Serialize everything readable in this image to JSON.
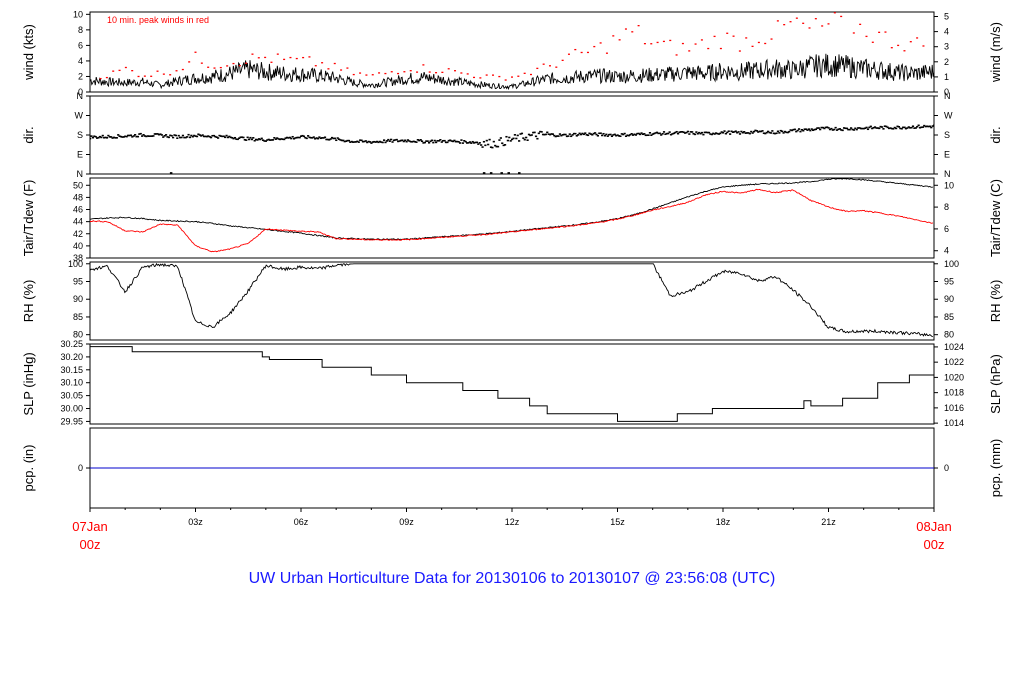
{
  "chart_data": {
    "type": "line",
    "title": "UW Urban Horticulture Data for 20130106  to  20130107 @ 23:56:08  (UTC)",
    "x_ticks": [
      "03z",
      "06z",
      "09z",
      "12z",
      "15z",
      "18z",
      "21z"
    ],
    "x_start": [
      "07Jan",
      "00z"
    ],
    "x_end": [
      "08Jan",
      "00z"
    ],
    "x_range_hours": [
      0,
      24
    ],
    "panels": [
      {
        "id": "wind",
        "left_label": "wind (kts)",
        "right_label": "wind (m/s)",
        "annotation": "10 min. peak winds in red",
        "left_ticks": [
          0,
          2,
          4,
          6,
          8,
          10
        ],
        "right_ticks": [
          0,
          1,
          2,
          3,
          4,
          5
        ],
        "ylim": [
          0,
          10.3
        ],
        "series": [
          {
            "role": "mean",
            "color": "#000000",
            "x": [
              0,
              0.5,
              1,
              1.5,
              2,
              2.5,
              3,
              3.5,
              4,
              4.5,
              5,
              5.5,
              6,
              6.5,
              7,
              7.5,
              8,
              8.5,
              9,
              9.5,
              10,
              10.5,
              11,
              11.5,
              12,
              12.5,
              13,
              13.5,
              14,
              14.5,
              15,
              15.5,
              16,
              16.5,
              17,
              17.5,
              18,
              18.5,
              19,
              19.5,
              20,
              20.5,
              21,
              21.5,
              22,
              22.5,
              23,
              23.5,
              24
            ],
            "y": [
              1.5,
              1.3,
              1.2,
              1.3,
              0.9,
              1.4,
              1.8,
              2.0,
              2.4,
              2.9,
              2.6,
              2.4,
              2.3,
              2.1,
              1.8,
              1.2,
              0.9,
              1.3,
              1.7,
              1.9,
              1.6,
              1.3,
              1.0,
              0.8,
              0.7,
              1.2,
              1.7,
              1.8,
              2.0,
              2.1,
              2.0,
              2.1,
              2.2,
              2.3,
              2.5,
              2.4,
              2.7,
              2.6,
              2.8,
              3.0,
              2.8,
              3.3,
              3.5,
              3.3,
              3.0,
              2.8,
              2.5,
              2.4,
              2.6
            ]
          },
          {
            "role": "peak",
            "color": "#ff0000",
            "x": [
              0.5,
              1,
              1.5,
              2,
              2.5,
              3,
              3.5,
              4,
              4.5,
              5,
              5.5,
              6,
              6.5,
              7,
              7.5,
              8,
              8.5,
              9,
              9.5,
              10,
              10.5,
              11,
              11.5,
              12,
              12.5,
              13,
              13.5,
              14,
              14.5,
              15,
              15.5,
              16,
              16.5,
              17,
              17.5,
              18,
              18.5,
              19,
              19.5,
              20,
              20.5,
              21,
              21.5,
              22,
              22.5,
              23,
              23.5
            ],
            "y": [
              2.3,
              3.2,
              2.4,
              2.6,
              3.2,
              4.7,
              3.8,
              4.2,
              4.6,
              4.8,
              4.4,
              4.3,
              4.0,
              3.3,
              2.6,
              2.2,
              2.7,
              3.4,
              3.3,
              3.1,
              2.7,
              2.3,
              2.0,
              2.1,
              2.7,
              3.5,
              4.6,
              5.3,
              6.1,
              7.4,
              8.4,
              6.7,
              6.2,
              6.0,
              6.8,
              7.5,
              6.9,
              7.7,
              8.2,
              9.6,
              8.6,
              9.3,
              9.8,
              8.7,
              7.6,
              7.0,
              6.6
            ]
          }
        ]
      },
      {
        "id": "dir",
        "left_label": "dir.",
        "right_label": "dir.",
        "left_ticks": [
          "N",
          "E",
          "S",
          "W",
          "N"
        ],
        "right_ticks": [
          "N",
          "E",
          "S",
          "W",
          "N"
        ],
        "ylim": [
          0,
          360
        ],
        "series": [
          {
            "role": "direction_deg",
            "color": "#000000",
            "x": [
              0,
              0.5,
              1,
              1.5,
              2,
              2.5,
              3,
              3.5,
              4,
              4.5,
              5,
              5.5,
              6,
              6.5,
              7,
              7.5,
              8,
              8.5,
              9,
              9.5,
              10,
              10.5,
              11,
              11.5,
              12,
              12.5,
              13,
              13.5,
              14,
              14.5,
              15,
              15.5,
              16,
              16.5,
              17,
              17.5,
              18,
              18.5,
              19,
              19.5,
              20,
              20.5,
              21,
              21.5,
              22,
              22.5,
              23,
              23.5,
              24
            ],
            "y": [
              170,
              172,
              175,
              180,
              178,
              172,
              178,
              174,
              170,
              162,
              158,
              165,
              170,
              168,
              160,
              150,
              148,
              152,
              155,
              150,
              152,
              150,
              146,
              140,
              160,
              175,
              182,
              178,
              185,
              182,
              180,
              182,
              186,
              188,
              190,
              186,
              192,
              190,
              195,
              192,
              200,
              205,
              210,
              208,
              212,
              214,
              215,
              218,
              220
            ]
          }
        ]
      },
      {
        "id": "temp",
        "left_label": "Tair/Tdew (F)",
        "right_label": "Tair/Tdew (C)",
        "left_ticks": [
          38,
          40,
          42,
          44,
          46,
          48,
          50
        ],
        "right_ticks": [
          4,
          6,
          8,
          10
        ],
        "ylim": [
          38,
          51.2
        ],
        "series": [
          {
            "role": "air_temp",
            "color": "#000000",
            "x": [
              0,
              0.5,
              1,
              1.5,
              2,
              2.5,
              3,
              3.5,
              4,
              4.5,
              5,
              5.5,
              6,
              6.5,
              7,
              7.5,
              8,
              8.5,
              9,
              9.5,
              10,
              10.5,
              11,
              11.5,
              12,
              12.5,
              13,
              13.5,
              14,
              14.5,
              15,
              15.5,
              16,
              16.5,
              17,
              17.5,
              18,
              18.5,
              19,
              19.5,
              20,
              20.5,
              21,
              21.5,
              22,
              22.5,
              23,
              23.5,
              24
            ],
            "y": [
              44.4,
              44.6,
              44.7,
              44.5,
              44.2,
              44.1,
              44.0,
              43.7,
              43.3,
              43.0,
              42.7,
              42.4,
              42.1,
              41.7,
              41.3,
              41.2,
              41.1,
              41.1,
              41.1,
              41.3,
              41.5,
              41.7,
              41.9,
              42.1,
              42.4,
              42.7,
              43.0,
              43.3,
              43.6,
              44.0,
              44.5,
              45.2,
              46.1,
              47.1,
              48.1,
              49.0,
              49.7,
              50.0,
              50.2,
              50.3,
              50.4,
              50.6,
              51.0,
              51.1,
              50.9,
              50.6,
              50.3,
              50.0,
              49.7
            ]
          },
          {
            "role": "dew_point",
            "color": "#ff0000",
            "x": [
              0,
              0.5,
              1,
              1.5,
              2,
              2.5,
              3,
              3.5,
              4,
              4.5,
              5,
              5.5,
              6,
              6.5,
              7,
              7.5,
              8,
              8.5,
              9,
              9.5,
              10,
              10.5,
              11,
              11.5,
              12,
              12.5,
              13,
              13.5,
              14,
              14.5,
              15,
              15.5,
              16,
              16.5,
              17,
              17.5,
              18,
              18.5,
              19,
              19.5,
              20,
              20.5,
              21,
              21.5,
              22,
              22.5,
              23,
              23.5,
              24
            ],
            "y": [
              44.1,
              44.0,
              42.5,
              42.3,
              43.6,
              43.4,
              40.0,
              39.0,
              39.5,
              40.4,
              42.8,
              42.6,
              42.4,
              42.3,
              41.2,
              41.1,
              41.0,
              41.0,
              41.0,
              41.2,
              41.4,
              41.6,
              41.8,
              42.0,
              42.3,
              42.6,
              42.9,
              43.2,
              43.5,
              43.9,
              44.4,
              45.1,
              45.9,
              46.5,
              47.2,
              48.4,
              49.0,
              48.7,
              49.3,
              48.8,
              49.2,
              47.5,
              46.4,
              45.7,
              45.8,
              45.4,
              44.9,
              44.3,
              43.7
            ]
          }
        ]
      },
      {
        "id": "rh",
        "left_label": "RH (%)",
        "right_label": "RH (%)",
        "left_ticks": [
          80,
          85,
          90,
          95,
          100
        ],
        "right_ticks": [
          80,
          85,
          90,
          95,
          100
        ],
        "ylim": [
          78.5,
          100.5
        ],
        "series": [
          {
            "role": "rh",
            "color": "#000000",
            "x": [
              0,
              0.5,
              1,
              1.5,
              2,
              2.5,
              3,
              3.5,
              4,
              4.5,
              5,
              5.5,
              6,
              6.5,
              7,
              7.5,
              8,
              8.5,
              9,
              9.5,
              10,
              10.5,
              11,
              11.5,
              12,
              12.5,
              13,
              13.5,
              14,
              14.5,
              15,
              15.5,
              16,
              16.5,
              17,
              17.5,
              18,
              18.5,
              19,
              19.5,
              20,
              20.5,
              21,
              21.5,
              22,
              22.5,
              23,
              23.5,
              24
            ],
            "y": [
              98.4,
              99.3,
              92.1,
              99.0,
              99.8,
              99.2,
              83.6,
              82.2,
              86.2,
              92.4,
              99.5,
              98.4,
              99.0,
              98.6,
              99.6,
              100,
              100,
              100,
              100,
              100,
              100,
              100,
              100,
              100,
              100,
              100,
              100,
              100,
              100,
              100,
              100,
              100,
              100,
              91.0,
              92.0,
              95.0,
              97.8,
              97.4,
              95.2,
              96.4,
              92.5,
              88.0,
              82.0,
              80.8,
              81.0,
              80.9,
              80.6,
              80.2,
              79.8
            ]
          }
        ]
      },
      {
        "id": "slp",
        "left_label": "SLP (inHg)",
        "right_label": "SLP (hPa)",
        "left_ticks": [
          "29.95",
          "30.00",
          "30.05",
          "30.10",
          "30.15",
          "30.20",
          "30.25"
        ],
        "right_ticks": [
          1014,
          1016,
          1018,
          1020,
          1022,
          1024
        ],
        "ylim": [
          29.94,
          30.25
        ],
        "series": [
          {
            "role": "pressure_steps",
            "color": "#000000",
            "x": [
              0,
              1.2,
              1.2,
              4.9,
              4.9,
              5.1,
              5.1,
              6.6,
              6.6,
              8.0,
              8.0,
              9.0,
              9.0,
              10.6,
              10.6,
              11.6,
              11.6,
              12.5,
              12.5,
              13.0,
              13.0,
              15.0,
              15.0,
              16.7,
              16.7,
              17.7,
              17.7,
              20.3,
              20.3,
              20.5,
              20.5,
              21.4,
              21.4,
              22.4,
              22.4,
              23.3,
              23.3,
              24
            ],
            "y": [
              30.24,
              30.24,
              30.22,
              30.22,
              30.2,
              30.2,
              30.19,
              30.19,
              30.16,
              30.16,
              30.13,
              30.13,
              30.1,
              30.1,
              30.07,
              30.07,
              30.04,
              30.04,
              30.01,
              30.01,
              29.98,
              29.98,
              29.95,
              29.95,
              29.98,
              29.98,
              30.0,
              30.0,
              30.03,
              30.03,
              30.01,
              30.01,
              30.04,
              30.04,
              30.1,
              30.1,
              30.13,
              30.13
            ]
          }
        ]
      },
      {
        "id": "pcp",
        "left_label": "pcp. (in)",
        "right_label": "pcp. (mm)",
        "left_ticks": [
          0
        ],
        "right_ticks": [
          0
        ],
        "ylim": [
          -1,
          1
        ],
        "series": [
          {
            "role": "precip",
            "color": "#0000cc",
            "x": [
              0,
              24
            ],
            "y": [
              0,
              0
            ]
          }
        ]
      }
    ]
  }
}
